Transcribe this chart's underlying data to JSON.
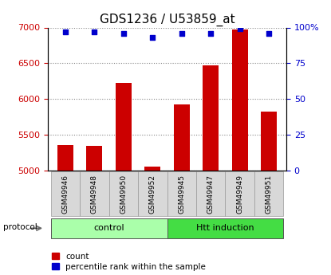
{
  "title": "GDS1236 / U53859_at",
  "samples": [
    "GSM49946",
    "GSM49948",
    "GSM49950",
    "GSM49952",
    "GSM49945",
    "GSM49947",
    "GSM49949",
    "GSM49951"
  ],
  "counts": [
    5355,
    5345,
    6230,
    5055,
    5920,
    6470,
    6970,
    5820
  ],
  "percentile_ranks": [
    97,
    97,
    96,
    93,
    96,
    96,
    99,
    96
  ],
  "ylim_left": [
    5000,
    7000
  ],
  "ylim_right": [
    0,
    100
  ],
  "yticks_left": [
    5000,
    5500,
    6000,
    6500,
    7000
  ],
  "yticks_right": [
    0,
    25,
    50,
    75,
    100
  ],
  "bar_color": "#cc0000",
  "scatter_color": "#0000cc",
  "bar_bottom": 5000,
  "groups": [
    {
      "label": "control",
      "start": 0,
      "end": 4,
      "color": "#aaffaa"
    },
    {
      "label": "Htt induction",
      "start": 4,
      "end": 8,
      "color": "#44dd44"
    }
  ],
  "protocol_label": "protocol",
  "legend_items": [
    {
      "label": "count",
      "color": "#cc0000"
    },
    {
      "label": "percentile rank within the sample",
      "color": "#0000cc"
    }
  ],
  "title_fontsize": 11,
  "axis_label_color_left": "#cc0000",
  "axis_label_color_right": "#0000cc",
  "background_color": "#ffffff",
  "xticklabels_bg": "#d8d8d8",
  "right_axis_pct_label": "100%"
}
